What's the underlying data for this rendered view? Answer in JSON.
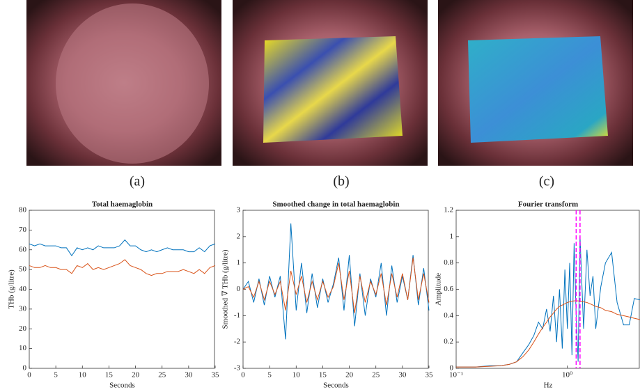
{
  "panels": [
    "(a)",
    "(b)",
    "(c)"
  ],
  "chart_data": [
    {
      "type": "line",
      "title": "Total haemaglobin",
      "xlabel": "Seconds",
      "ylabel": "THb (g/litre)",
      "x": [
        0,
        1,
        2,
        3,
        4,
        5,
        6,
        7,
        8,
        9,
        10,
        11,
        12,
        13,
        14,
        15,
        16,
        17,
        18,
        19,
        20,
        21,
        22,
        23,
        24,
        25,
        26,
        27,
        28,
        29,
        30,
        31,
        32,
        33,
        34,
        35
      ],
      "series": [
        {
          "color": "#0072bd",
          "values": [
            63,
            62,
            63,
            62,
            62,
            62,
            61,
            61,
            57,
            61,
            60,
            61,
            60,
            62,
            61,
            61,
            61,
            62,
            65,
            62,
            62,
            60,
            59,
            60,
            59,
            60,
            61,
            60,
            60,
            60,
            59,
            59,
            61,
            59,
            62,
            63
          ]
        },
        {
          "color": "#d95319",
          "values": [
            52,
            51,
            51,
            52,
            51,
            51,
            50,
            50,
            48,
            52,
            51,
            53,
            50,
            51,
            50,
            51,
            52,
            53,
            55,
            52,
            51,
            50,
            48,
            47,
            48,
            48,
            49,
            49,
            49,
            50,
            49,
            48,
            50,
            48,
            51,
            52
          ]
        }
      ],
      "xlim": [
        0,
        35
      ],
      "xticks": [
        0,
        5,
        10,
        15,
        20,
        25,
        30,
        35
      ],
      "ylim": [
        0,
        80
      ],
      "yticks": [
        0,
        10,
        20,
        30,
        40,
        50,
        60,
        70,
        80
      ]
    },
    {
      "type": "line",
      "title": "Smoothed change in total haemaglobin",
      "xlabel": "Seconds",
      "ylabel": "Smoothed ∇ THb (g/litre)",
      "x": [
        0,
        1,
        2,
        3,
        4,
        5,
        6,
        7,
        8,
        9,
        10,
        11,
        12,
        13,
        14,
        15,
        16,
        17,
        18,
        19,
        20,
        21,
        22,
        23,
        24,
        25,
        26,
        27,
        28,
        29,
        30,
        31,
        32,
        33,
        34,
        35
      ],
      "series": [
        {
          "color": "#0072bd",
          "values": [
            0,
            0.3,
            -0.5,
            0.4,
            -0.6,
            0.5,
            -0.3,
            0.5,
            -1.9,
            2.5,
            -0.8,
            1,
            -0.9,
            0.6,
            -0.7,
            0.4,
            -0.5,
            0.2,
            1.2,
            -0.8,
            1.3,
            -1.4,
            0.6,
            -1,
            0.4,
            -0.3,
            1,
            -1,
            0.9,
            -0.5,
            0.5,
            -0.4,
            1.3,
            -0.6,
            0.8,
            -0.8
          ]
        },
        {
          "color": "#d95319",
          "values": [
            0,
            0.1,
            -0.3,
            0.3,
            -0.4,
            0.3,
            -0.2,
            0.3,
            -0.8,
            0.7,
            -0.2,
            0.5,
            -0.5,
            0.3,
            -0.4,
            0.3,
            -0.3,
            0.1,
            1,
            -0.4,
            0.7,
            -0.9,
            0.5,
            -0.5,
            0.3,
            -0.2,
            0.6,
            -0.6,
            0.6,
            -0.3,
            0.6,
            -0.4,
            1.2,
            -0.4,
            0.6,
            -0.5
          ]
        }
      ],
      "xlim": [
        0,
        35
      ],
      "xticks": [
        0,
        5,
        10,
        15,
        20,
        25,
        30,
        35
      ],
      "ylim": [
        -3,
        3
      ],
      "yticks": [
        -3,
        -2,
        -1,
        0,
        1,
        2,
        3
      ]
    },
    {
      "type": "line",
      "title": "Fourier transform",
      "xlabel": "Hz",
      "ylabel": "Amplitude",
      "xscale": "log",
      "x": [
        0.1,
        0.15,
        0.2,
        0.25,
        0.3,
        0.35,
        0.4,
        0.45,
        0.5,
        0.55,
        0.6,
        0.65,
        0.7,
        0.75,
        0.8,
        0.85,
        0.9,
        0.95,
        1.0,
        1.05,
        1.1,
        1.15,
        1.2,
        1.25,
        1.3,
        1.4,
        1.5,
        1.6,
        1.7,
        1.8,
        2.0,
        2.2,
        2.5,
        2.8,
        3.2,
        3.6,
        4.0,
        4.5
      ],
      "series": [
        {
          "color": "#0072bd",
          "values": [
            0.01,
            0.01,
            0.02,
            0.02,
            0.03,
            0.05,
            0.12,
            0.18,
            0.25,
            0.35,
            0.3,
            0.45,
            0.28,
            0.55,
            0.2,
            0.6,
            0.15,
            0.75,
            0.3,
            0.8,
            0.1,
            0.95,
            0.4,
            0.05,
            1.0,
            0.3,
            0.9,
            0.55,
            0.7,
            0.3,
            0.62,
            0.8,
            0.88,
            0.5,
            0.33,
            0.33,
            0.53,
            0.52
          ]
        },
        {
          "color": "#d95319",
          "values": [
            0.01,
            0.01,
            0.015,
            0.02,
            0.03,
            0.05,
            0.09,
            0.14,
            0.2,
            0.26,
            0.31,
            0.35,
            0.39,
            0.42,
            0.45,
            0.47,
            0.48,
            0.49,
            0.5,
            0.505,
            0.51,
            0.512,
            0.513,
            0.512,
            0.51,
            0.505,
            0.5,
            0.49,
            0.48,
            0.47,
            0.46,
            0.44,
            0.43,
            0.41,
            0.4,
            0.39,
            0.38,
            0.37
          ]
        }
      ],
      "vlines": {
        "x": [
          1.2,
          1.3
        ],
        "color": "#ff00ff"
      },
      "xlim": [
        0.1,
        4.5
      ],
      "xticks": [
        {
          "value": 0.1,
          "label": "10⁻¹"
        },
        {
          "value": 1,
          "label": "10⁰"
        }
      ],
      "ylim": [
        0,
        1.2
      ],
      "yticks": [
        0,
        0.2,
        0.4,
        0.6,
        0.8,
        1,
        1.2
      ]
    }
  ]
}
